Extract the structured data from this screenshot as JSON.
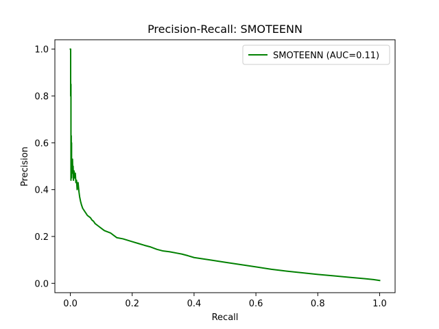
{
  "chart_data": {
    "type": "line",
    "title": "Precision-Recall: SMOTEENN",
    "xlabel": "Recall",
    "ylabel": "Precision",
    "xlim": [
      -0.05,
      1.05
    ],
    "ylim": [
      -0.04,
      1.04
    ],
    "xticks": [
      0.0,
      0.2,
      0.4,
      0.6,
      0.8,
      1.0
    ],
    "xtick_labels": [
      "0.0",
      "0.2",
      "0.4",
      "0.6",
      "0.8",
      "1.0"
    ],
    "yticks": [
      0.0,
      0.2,
      0.4,
      0.6,
      0.8,
      1.0
    ],
    "ytick_labels": [
      "0.0",
      "0.2",
      "0.4",
      "0.6",
      "0.8",
      "1.0"
    ],
    "grid": false,
    "legend_position": "top-right",
    "series": [
      {
        "name": "SMOTEENN (AUC=0.11)",
        "color": "#008000",
        "x": [
          0.0,
          0.001,
          0.001,
          0.002,
          0.002,
          0.003,
          0.003,
          0.004,
          0.004,
          0.005,
          0.006,
          0.007,
          0.008,
          0.009,
          0.01,
          0.012,
          0.014,
          0.016,
          0.018,
          0.02,
          0.022,
          0.025,
          0.028,
          0.03,
          0.033,
          0.036,
          0.04,
          0.045,
          0.05,
          0.055,
          0.06,
          0.065,
          0.07,
          0.075,
          0.08,
          0.09,
          0.1,
          0.11,
          0.12,
          0.13,
          0.14,
          0.15,
          0.17,
          0.19,
          0.2,
          0.22,
          0.24,
          0.26,
          0.28,
          0.3,
          0.32,
          0.34,
          0.36,
          0.38,
          0.4,
          0.45,
          0.5,
          0.55,
          0.6,
          0.65,
          0.7,
          0.75,
          0.8,
          0.85,
          0.9,
          0.95,
          0.98,
          1.0
        ],
        "y": [
          1.0,
          1.0,
          0.8,
          0.85,
          0.44,
          0.63,
          0.45,
          0.6,
          0.45,
          0.53,
          0.48,
          0.53,
          0.47,
          0.5,
          0.44,
          0.48,
          0.45,
          0.47,
          0.43,
          0.44,
          0.4,
          0.43,
          0.39,
          0.37,
          0.35,
          0.335,
          0.32,
          0.31,
          0.3,
          0.29,
          0.285,
          0.28,
          0.27,
          0.265,
          0.255,
          0.245,
          0.235,
          0.225,
          0.22,
          0.215,
          0.205,
          0.195,
          0.19,
          0.182,
          0.178,
          0.17,
          0.162,
          0.155,
          0.145,
          0.138,
          0.135,
          0.13,
          0.125,
          0.118,
          0.11,
          0.1,
          0.09,
          0.08,
          0.07,
          0.06,
          0.052,
          0.045,
          0.038,
          0.032,
          0.026,
          0.02,
          0.016,
          0.012
        ]
      }
    ]
  }
}
